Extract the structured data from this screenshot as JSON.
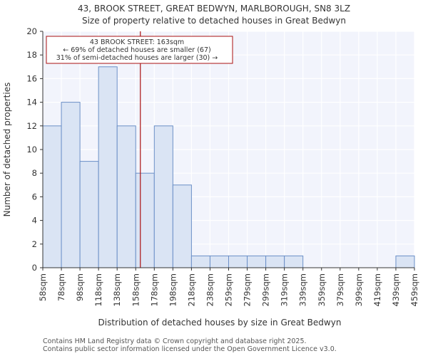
{
  "chart_data": {
    "type": "histogram",
    "title_line1": "43, BROOK STREET, GREAT BEDWYN, MARLBOROUGH, SN8 3LZ",
    "title_line2": "Size of property relative to detached houses in Great Bedwyn",
    "xlabel": "Distribution of detached houses by size in Great Bedwyn",
    "ylabel": "Number of detached properties",
    "ylim": [
      0,
      20
    ],
    "yticks": [
      0,
      2,
      4,
      6,
      8,
      10,
      12,
      14,
      16,
      18,
      20
    ],
    "categories": [
      "58sqm",
      "78sqm",
      "98sqm",
      "118sqm",
      "138sqm",
      "158sqm",
      "178sqm",
      "198sqm",
      "218sqm",
      "238sqm",
      "259sqm",
      "279sqm",
      "299sqm",
      "319sqm",
      "339sqm",
      "359sqm",
      "379sqm",
      "399sqm",
      "419sqm",
      "439sqm",
      "459sqm"
    ],
    "values": [
      12,
      14,
      9,
      17,
      12,
      8,
      12,
      7,
      1,
      1,
      1,
      1,
      1,
      1,
      0,
      0,
      0,
      0,
      0,
      1
    ],
    "marker_value": 163,
    "marker_bin_position": 5.25,
    "annotation": {
      "line1": "43 BROOK STREET: 163sqm",
      "line2": "← 69% of detached houses are smaller (67)",
      "line3": "31% of semi-detached houses are larger (30) →"
    },
    "colors": {
      "bar_fill": "#dae4f4",
      "bar_stroke": "#6b8fc7",
      "marker": "#aa1111",
      "plot_bg": "#f2f4fc",
      "grid": "#ffffff"
    }
  },
  "footer": {
    "line1": "Contains HM Land Registry data © Crown copyright and database right 2025.",
    "line2": "Contains public sector information licensed under the Open Government Licence v3.0."
  }
}
